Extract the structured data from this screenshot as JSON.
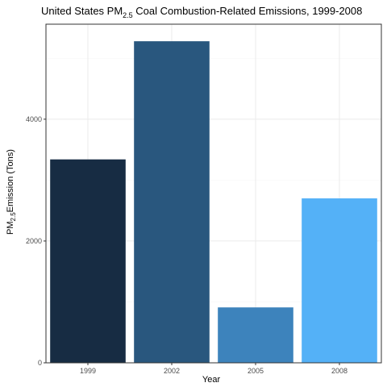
{
  "chart_data": {
    "type": "bar",
    "title_main": "United States PM",
    "title_sub": "2.5",
    "title_rest": " Coal Combustion-Related Emissions, 1999-2008",
    "xlabel": "Year",
    "ylabel_main": "PM",
    "ylabel_sub": "2.5",
    "ylabel_rest": "Emission (Tons)",
    "categories": [
      "1999",
      "2002",
      "2005",
      "2008"
    ],
    "values": [
      3340,
      5280,
      910,
      2700
    ],
    "colors": [
      "#172c43",
      "#29577e",
      "#3d83bc",
      "#54b1f7"
    ],
    "ylim": [
      0,
      5560
    ],
    "yticks": [
      0,
      2000,
      4000
    ],
    "grid": true,
    "legend": "none"
  }
}
